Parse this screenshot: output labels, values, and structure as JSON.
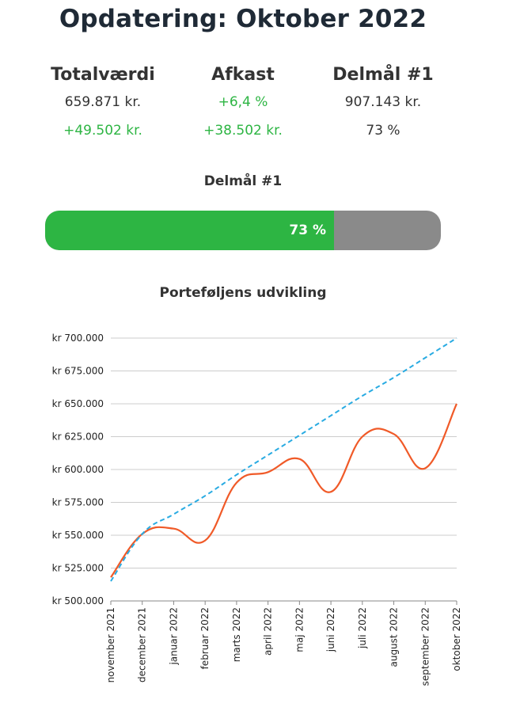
{
  "title": "Opdatering: Oktober 2022",
  "stats": [
    {
      "header": "Totalværdi",
      "value": "659.871 kr.",
      "change": "+49.502 kr."
    },
    {
      "header": "Afkast",
      "value": "+6,4 %",
      "change": "+38.502 kr."
    },
    {
      "header": "Delmål #1",
      "value": "907.143 kr.",
      "change": "73 %"
    }
  ],
  "progress": {
    "title": "Delmål #1",
    "label": "73 %",
    "fraction": 0.73
  },
  "colors": {
    "green": "#2db543",
    "gray": "#8a8a8a",
    "orange": "#f05a28",
    "blue": "#29abe2",
    "grid": "#cccccc"
  },
  "chart_data": {
    "type": "line",
    "title": "Porteføljens udvikling",
    "x": [
      "november 2021",
      "december 2021",
      "januar 2022",
      "februar 2022",
      "marts 2022",
      "april 2022",
      "maj 2022",
      "juni 2022",
      "juli 2022",
      "august 2022",
      "september 2022",
      "oktober 2022"
    ],
    "ylim": [
      500000,
      700000
    ],
    "yticks": [
      500000,
      525000,
      550000,
      575000,
      600000,
      625000,
      650000,
      675000,
      700000
    ],
    "ytick_labels": [
      "kr 500.000",
      "kr 525.000",
      "kr 550.000",
      "kr 575.000",
      "kr 600.000",
      "kr 625.000",
      "kr 650.000",
      "kr 675.000",
      "kr 700.000"
    ],
    "grid": true,
    "series": [
      {
        "style": "solid",
        "color": "#f05a28",
        "values": [
          518000,
          551000,
          555000,
          546000,
          590000,
          598000,
          608000,
          583000,
          625000,
          627000,
          601000,
          650000
        ]
      },
      {
        "style": "dashed",
        "color": "#29abe2",
        "values": [
          515000,
          551000,
          566000,
          580000,
          596000,
          611000,
          626000,
          641000,
          656000,
          670000,
          685000,
          700000
        ]
      }
    ]
  }
}
